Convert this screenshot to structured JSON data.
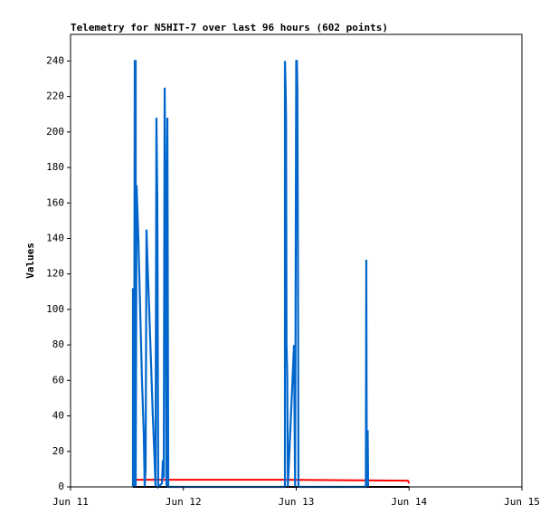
{
  "chart_data": {
    "type": "line",
    "title": "Telemetry for N5HIT-7 over last 96 hours (602 points)",
    "ylabel": "Values",
    "xlim": [
      11,
      15
    ],
    "xticks": [
      {
        "value": 11,
        "label": "Jun 11"
      },
      {
        "value": 12,
        "label": "Jun 12"
      },
      {
        "value": 13,
        "label": "Jun 13"
      },
      {
        "value": 14,
        "label": "Jun 14"
      },
      {
        "value": 15,
        "label": "Jun 15"
      }
    ],
    "ylim": [
      0,
      255
    ],
    "yticks": [
      0,
      20,
      40,
      60,
      80,
      100,
      120,
      140,
      160,
      180,
      200,
      220,
      240
    ],
    "grid": false,
    "series": [
      {
        "color": "#000000",
        "x": [
          11.553,
          14.0
        ],
        "values": [
          0,
          0
        ]
      },
      {
        "color": "#ff0000",
        "x": [
          11.577,
          12.9,
          13.99,
          14.0
        ],
        "values": [
          4,
          4,
          3.5,
          2
        ]
      },
      {
        "color": "#0066cc",
        "x": [
          11.553,
          11.553,
          11.561,
          11.565,
          11.569,
          11.577,
          11.577,
          11.585,
          11.593,
          11.601,
          11.617,
          11.633,
          11.649,
          11.657,
          11.665,
          11.673,
          11.681,
          11.697,
          11.713,
          11.729,
          11.745,
          11.753,
          11.761,
          11.769,
          11.777,
          11.81,
          11.818,
          11.826,
          11.834,
          11.842,
          11.85,
          11.858,
          11.866,
          12.9,
          12.9,
          12.906,
          12.91,
          12.914,
          12.92,
          12.926,
          12.98,
          12.99,
          13.0,
          13.006,
          13.01,
          13.016,
          13.02,
          13.617,
          13.621,
          13.625,
          13.633,
          13.637
        ],
        "values": [
          0,
          112,
          0,
          80,
          240,
          240,
          0,
          170,
          155,
          140,
          100,
          60,
          30,
          0,
          10,
          145,
          128,
          100,
          70,
          40,
          15,
          0,
          208,
          160,
          0,
          2,
          15,
          5,
          225,
          160,
          0,
          208,
          0,
          0,
          240,
          225,
          208,
          80,
          65,
          0,
          80,
          0,
          240,
          240,
          225,
          112,
          0,
          0,
          128,
          0,
          32,
          0
        ]
      }
    ]
  }
}
